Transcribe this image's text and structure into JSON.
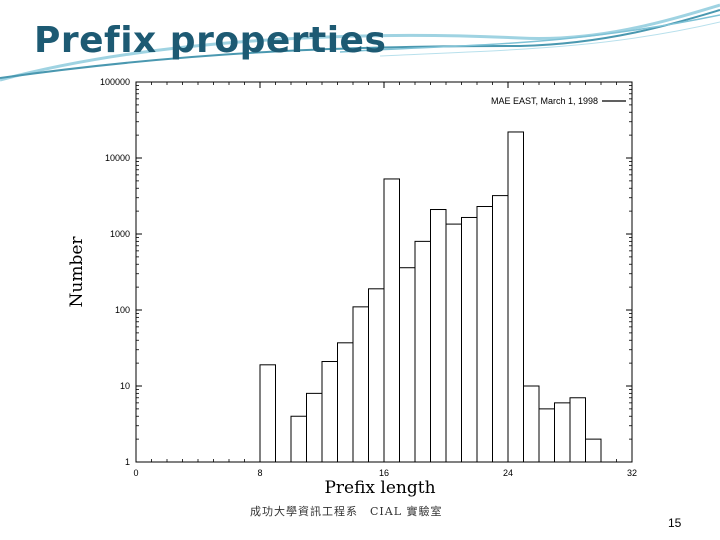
{
  "slide": {
    "title": "Prefix properties",
    "footer": "成功大學資訊工程系　CIAL 實驗室",
    "page_number": "15",
    "colors": {
      "title": "#1d5a73",
      "swoosh_dark": "#4a98b0",
      "swoosh_light": "#9fd3e2",
      "bars": "#000000"
    }
  },
  "chart_data": {
    "type": "bar",
    "title": "",
    "xlabel": "Prefix length",
    "ylabel": "Number",
    "legend": {
      "label": "MAE EAST, March 1, 1998",
      "placement": "top-right"
    },
    "yscale": "log",
    "ylim": [
      1,
      100000
    ],
    "xlim": [
      0,
      32
    ],
    "xticks": [
      0,
      8,
      16,
      24,
      32
    ],
    "yticks": [
      1,
      10,
      100,
      1000,
      10000,
      100000
    ],
    "grid": false,
    "categories": [
      8,
      10,
      11,
      12,
      13,
      14,
      15,
      16,
      17,
      18,
      19,
      20,
      21,
      22,
      23,
      24,
      25,
      26,
      27,
      28,
      29
    ],
    "values": [
      19,
      4,
      8,
      21,
      37,
      110,
      190,
      5300,
      360,
      800,
      2100,
      1350,
      1650,
      2300,
      3200,
      22000,
      10,
      5,
      6,
      7,
      2
    ]
  }
}
